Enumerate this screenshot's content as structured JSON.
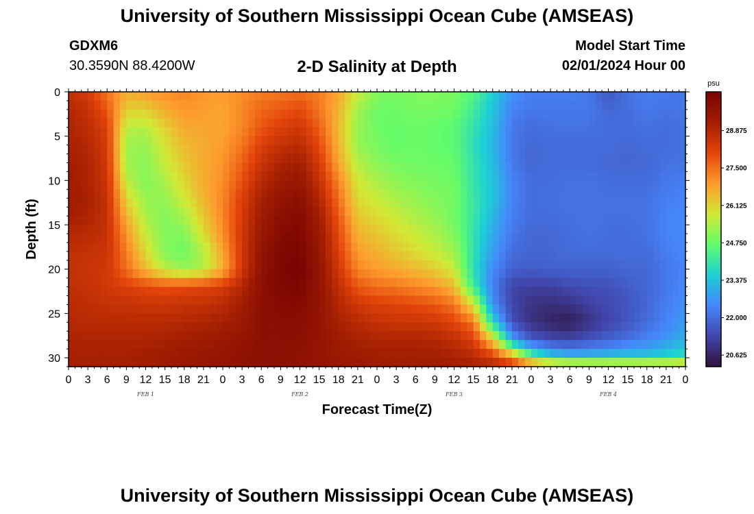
{
  "header": {
    "title": "University of Southern Mississippi Ocean Cube (AMSEAS)",
    "station_id": "GDXM6",
    "station_coords": "30.3590N  88.4200W",
    "chart_title": "2-D Salinity at Depth",
    "start_label": "Model Start Time",
    "start_value": "02/01/2024 Hour 00"
  },
  "footer": {
    "title": "University of Southern Mississippi Ocean Cube (AMSEAS)"
  },
  "chart_data": {
    "type": "heatmap",
    "title": "2-D Salinity at Depth",
    "xlabel": "Forecast Time(Z)",
    "ylabel": "Depth (ft)",
    "x_hours": [
      0,
      3,
      6,
      9,
      12,
      15,
      18,
      21,
      24,
      27,
      30,
      33,
      36,
      39,
      42,
      45,
      48,
      51,
      54,
      57,
      60,
      63,
      66,
      69,
      72,
      75,
      78,
      81,
      84,
      87,
      90,
      93,
      96
    ],
    "x_tick_labels": [
      "0",
      "3",
      "6",
      "9",
      "12",
      "15",
      "18",
      "21",
      "0",
      "3",
      "6",
      "9",
      "12",
      "15",
      "18",
      "21",
      "0",
      "3",
      "6",
      "9",
      "12",
      "15",
      "18",
      "21",
      "0",
      "3",
      "6",
      "9",
      "12",
      "15",
      "18",
      "21",
      "0"
    ],
    "day_labels": [
      {
        "hour": 12,
        "label": "FEB 1"
      },
      {
        "hour": 36,
        "label": "FEB 2"
      },
      {
        "hour": 60,
        "label": "FEB 3"
      },
      {
        "hour": 84,
        "label": "FEB 4"
      }
    ],
    "xlim": [
      0,
      96
    ],
    "depth_ft": [
      0,
      2,
      4,
      6,
      8,
      10,
      12,
      14,
      16,
      18,
      20,
      22,
      24,
      26,
      28,
      30,
      31
    ],
    "y_ticks": [
      0,
      5,
      10,
      15,
      20,
      25,
      30
    ],
    "ylim": [
      0,
      31
    ],
    "y_inverted": true,
    "colorbar": {
      "unit": "psu",
      "min": 20.2,
      "max": 30.3,
      "tick_values": [
        28.875,
        27.5,
        26.125,
        24.75,
        23.375,
        22.0,
        20.625
      ],
      "tick_labels": [
        "28.875",
        "27.500",
        "26.125",
        "24.750",
        "23.375",
        "22.000",
        "20.625"
      ],
      "colors": [
        "#30123b",
        "#4146ac",
        "#4686fb",
        "#1bd0d5",
        "#62fc6b",
        "#d2e935",
        "#fe9b2d",
        "#e3440a",
        "#a31e02",
        "#7a0403"
      ]
    },
    "z_salinity_psu": [
      [
        28.6,
        28.3,
        27.4,
        26.7,
        26.9,
        27.1,
        27.2,
        27.0,
        26.9,
        27.1,
        27.3,
        27.4,
        27.5,
        27.3,
        26.8,
        25.8,
        25.0,
        24.9,
        25.0,
        25.0,
        24.9,
        24.5,
        23.6,
        22.6,
        22.3,
        22.3,
        22.3,
        22.2,
        21.6,
        22.1,
        22.3,
        22.2,
        22.2
      ],
      [
        28.9,
        28.6,
        27.8,
        26.2,
        26.2,
        26.7,
        27.0,
        26.9,
        26.8,
        27.2,
        27.6,
        27.8,
        28.0,
        27.4,
        26.6,
        25.3,
        24.8,
        24.8,
        24.9,
        24.9,
        24.8,
        24.2,
        23.4,
        22.4,
        22.2,
        22.2,
        22.2,
        22.2,
        21.9,
        22.0,
        22.2,
        22.1,
        22.2
      ],
      [
        29.0,
        28.7,
        28.2,
        25.6,
        25.5,
        26.2,
        26.7,
        26.8,
        26.8,
        27.2,
        27.8,
        28.2,
        28.4,
        27.7,
        26.5,
        25.2,
        24.8,
        24.7,
        24.8,
        24.7,
        24.6,
        24.0,
        23.3,
        22.2,
        22.0,
        22.1,
        22.1,
        22.1,
        22.0,
        22.0,
        22.1,
        22.0,
        22.1
      ],
      [
        29.1,
        28.9,
        28.3,
        25.3,
        25.2,
        25.9,
        26.5,
        26.7,
        26.9,
        27.4,
        28.2,
        28.6,
        28.8,
        28.0,
        26.6,
        25.2,
        24.9,
        24.7,
        24.8,
        24.7,
        24.6,
        23.9,
        23.2,
        22.2,
        21.9,
        22.0,
        22.0,
        22.0,
        22.0,
        21.9,
        22.0,
        22.0,
        22.1
      ],
      [
        29.2,
        29.0,
        28.4,
        25.3,
        25.1,
        25.7,
        26.3,
        26.7,
        27.0,
        27.7,
        28.5,
        29.0,
        29.2,
        28.3,
        26.8,
        25.5,
        25.1,
        24.9,
        24.8,
        24.8,
        24.7,
        24.0,
        23.3,
        22.2,
        21.9,
        22.0,
        22.0,
        22.0,
        21.9,
        21.9,
        21.9,
        22.1,
        22.1
      ],
      [
        29.3,
        29.0,
        28.5,
        25.6,
        25.0,
        25.4,
        26.1,
        26.7,
        27.1,
        27.9,
        28.8,
        29.3,
        29.5,
        28.6,
        27.2,
        25.8,
        25.4,
        25.1,
        25.0,
        24.9,
        24.8,
        24.0,
        23.4,
        22.4,
        22.0,
        22.0,
        22.1,
        22.1,
        22.0,
        22.0,
        22.0,
        22.2,
        22.3
      ],
      [
        29.3,
        29.1,
        28.6,
        26.1,
        25.2,
        25.2,
        25.8,
        26.6,
        27.2,
        28.2,
        29.1,
        29.6,
        29.8,
        28.9,
        27.5,
        26.0,
        25.7,
        25.4,
        25.2,
        25.0,
        24.9,
        24.1,
        23.4,
        22.4,
        22.0,
        22.1,
        22.1,
        22.1,
        22.1,
        22.1,
        22.1,
        22.3,
        22.4
      ],
      [
        29.2,
        29.0,
        28.6,
        26.6,
        25.4,
        25.0,
        25.4,
        26.3,
        27.2,
        28.3,
        29.3,
        29.8,
        30.0,
        29.2,
        27.8,
        26.3,
        26.0,
        25.7,
        25.4,
        25.2,
        24.8,
        24.1,
        23.2,
        22.3,
        22.0,
        22.0,
        22.1,
        22.1,
        22.1,
        22.1,
        22.1,
        22.4,
        22.5
      ],
      [
        28.9,
        28.8,
        28.6,
        27.0,
        25.7,
        25.0,
        25.0,
        26.0,
        27.1,
        28.4,
        29.4,
        30.0,
        30.1,
        29.4,
        28.0,
        26.6,
        26.3,
        26.0,
        25.7,
        25.4,
        25.0,
        24.0,
        23.0,
        22.2,
        21.9,
        21.9,
        22.0,
        22.1,
        22.0,
        22.0,
        22.1,
        22.4,
        22.5
      ],
      [
        28.7,
        28.6,
        28.5,
        27.3,
        26.0,
        25.0,
        24.8,
        25.5,
        26.8,
        28.4,
        29.6,
        30.1,
        30.2,
        29.5,
        28.2,
        26.9,
        26.6,
        26.3,
        26.0,
        25.7,
        25.3,
        24.0,
        22.8,
        22.0,
        21.9,
        21.9,
        22.0,
        22.0,
        22.0,
        22.0,
        22.0,
        22.3,
        22.5
      ],
      [
        28.6,
        28.5,
        28.4,
        27.5,
        26.5,
        25.6,
        25.2,
        25.5,
        26.6,
        28.4,
        29.7,
        30.2,
        30.3,
        29.6,
        28.4,
        27.2,
        26.9,
        26.7,
        26.5,
        26.2,
        25.7,
        23.9,
        22.5,
        21.8,
        21.7,
        21.8,
        21.8,
        21.8,
        21.8,
        21.9,
        21.9,
        22.2,
        22.4
      ],
      [
        28.7,
        28.6,
        28.4,
        28.2,
        28.0,
        27.9,
        28.0,
        28.1,
        28.3,
        28.9,
        29.8,
        30.1,
        30.2,
        29.6,
        28.7,
        27.8,
        27.5,
        27.4,
        27.2,
        27.0,
        26.5,
        24.2,
        22.3,
        21.3,
        21.2,
        21.2,
        21.4,
        21.5,
        21.5,
        21.7,
        21.9,
        22.2,
        22.5
      ],
      [
        28.8,
        28.7,
        28.6,
        28.6,
        28.5,
        28.5,
        28.6,
        28.6,
        28.8,
        29.2,
        29.8,
        30.0,
        30.0,
        29.6,
        28.9,
        28.4,
        28.2,
        28.1,
        28.0,
        27.8,
        27.4,
        25.9,
        22.6,
        21.3,
        20.9,
        20.8,
        20.9,
        21.2,
        21.4,
        21.6,
        21.9,
        22.3,
        22.6
      ],
      [
        28.9,
        28.8,
        28.8,
        28.8,
        28.8,
        28.8,
        28.9,
        29.0,
        29.1,
        29.4,
        29.8,
        29.9,
        29.9,
        29.6,
        29.1,
        28.8,
        28.6,
        28.5,
        28.5,
        28.4,
        28.1,
        27.4,
        23.8,
        21.5,
        20.9,
        20.6,
        20.5,
        20.9,
        21.3,
        21.6,
        22.0,
        22.4,
        22.8
      ],
      [
        29.0,
        29.0,
        29.0,
        29.0,
        29.0,
        29.1,
        29.2,
        29.3,
        29.4,
        29.6,
        29.8,
        29.8,
        29.8,
        29.6,
        29.3,
        29.1,
        29.0,
        29.0,
        29.0,
        28.9,
        28.7,
        28.2,
        26.3,
        22.9,
        21.7,
        21.4,
        21.3,
        21.6,
        21.8,
        22.1,
        22.4,
        22.7,
        23.1
      ],
      [
        29.1,
        29.1,
        29.1,
        29.1,
        29.2,
        29.3,
        29.4,
        29.5,
        29.6,
        29.7,
        29.8,
        29.8,
        29.7,
        29.6,
        29.4,
        29.3,
        29.2,
        29.2,
        29.2,
        29.2,
        29.1,
        28.9,
        28.4,
        27.2,
        24.8,
        23.6,
        23.3,
        23.3,
        23.4,
        23.5,
        23.5,
        23.7,
        24.0
      ],
      [
        29.2,
        29.2,
        29.2,
        29.2,
        29.2,
        29.3,
        29.4,
        29.5,
        29.6,
        29.7,
        29.8,
        29.8,
        29.7,
        29.6,
        29.5,
        29.4,
        29.3,
        29.3,
        29.3,
        29.3,
        29.2,
        29.1,
        28.9,
        28.5,
        28.0,
        27.6,
        27.4,
        27.3,
        27.2,
        27.2,
        27.2,
        27.2,
        27.2
      ]
    ]
  }
}
